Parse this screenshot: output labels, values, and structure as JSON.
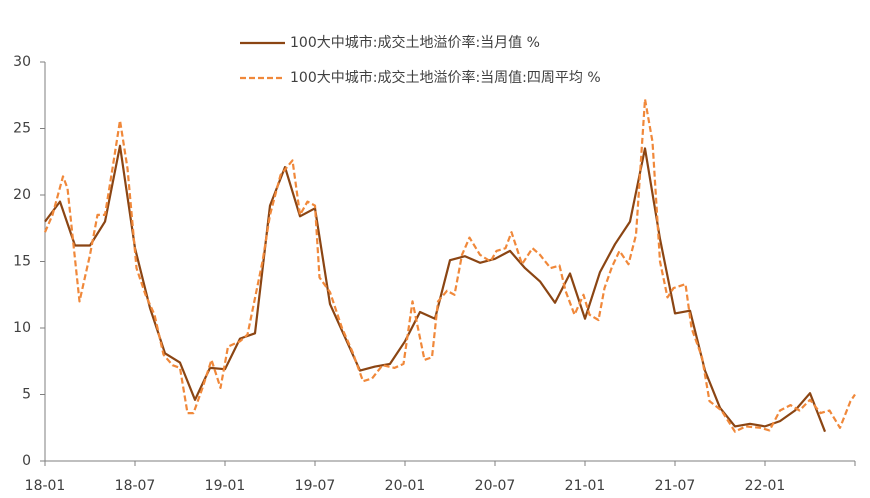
{
  "chart_data": {
    "type": "line",
    "series": [
      {
        "name": "100大中城市:成交土地溢价率:当月值 %",
        "color": "#8b4513",
        "dash": false,
        "x": [
          0,
          1,
          2,
          3,
          4,
          5,
          6,
          7,
          8,
          9,
          10,
          11,
          12,
          13,
          14,
          15,
          16,
          17,
          18,
          19,
          20,
          21,
          22,
          23,
          24,
          25,
          26,
          27,
          28,
          29,
          30,
          31,
          32,
          33,
          34,
          35,
          36,
          37,
          38,
          39,
          40,
          41,
          42,
          43,
          44,
          45,
          46,
          47,
          48,
          49,
          50,
          51,
          52
        ],
        "values": [
          18.0,
          19.5,
          16.2,
          16.2,
          18.0,
          23.7,
          16.0,
          11.5,
          8.1,
          7.4,
          4.6,
          7.0,
          6.9,
          9.2,
          9.6,
          19.2,
          22.1,
          18.4,
          19.0,
          11.8,
          9.3,
          6.8,
          7.1,
          7.3,
          9.0,
          11.2,
          10.7,
          15.1,
          15.4,
          14.9,
          15.2,
          15.8,
          14.5,
          13.5,
          11.9,
          14.1,
          10.7,
          14.2,
          16.3,
          18.0,
          23.5,
          16.7,
          11.1,
          11.3,
          6.8,
          4.0,
          2.6,
          2.8,
          2.6,
          3.0,
          3.8,
          5.1,
          2.2
        ]
      },
      {
        "name": "100大中城市:成交土地溢价率:当周值:四周平均 %",
        "color": "#f0883a",
        "dash": true,
        "x": [
          0,
          0.5,
          1.2,
          1.5,
          2.3,
          3,
          3.5,
          4,
          4.5,
          5,
          5.5,
          6.1,
          6.7,
          7.3,
          7.9,
          8.5,
          9,
          9.5,
          9.9,
          10.5,
          11.1,
          11.7,
          12.2,
          13,
          13.5,
          14.5,
          15,
          15.7,
          16.5,
          17,
          17.5,
          18,
          18.3,
          19,
          19.8,
          20.5,
          21.2,
          21.8,
          22.5,
          23.3,
          23.9,
          24.5,
          25.3,
          25.8,
          26.2,
          26.8,
          27.3,
          27.8,
          28.3,
          29,
          29.7,
          30.1,
          30.7,
          31.1,
          31.8,
          32.5,
          33,
          33.7,
          34.3,
          34.7,
          35.3,
          35.9,
          36.3,
          36.9,
          37.3,
          37.8,
          38.3,
          38.9,
          39.4,
          40,
          40.5,
          41,
          41.5,
          41.9,
          42.7,
          43.1,
          43.8,
          44.3,
          45.1,
          46,
          46.7,
          47.7,
          48.3,
          49,
          49.7,
          50.3,
          51,
          51.7,
          52.3,
          53,
          53.7,
          54
        ],
        "values": [
          17.2,
          18.5,
          21.4,
          20.5,
          12.0,
          15.5,
          18.5,
          18.5,
          22.0,
          25.6,
          22.0,
          14.5,
          12.5,
          11.0,
          8.0,
          7.2,
          7.0,
          3.6,
          3.6,
          5.5,
          7.6,
          5.5,
          8.6,
          9.0,
          9.5,
          15.0,
          18.5,
          21.5,
          22.6,
          18.5,
          19.5,
          19.2,
          13.8,
          12.7,
          10.0,
          8.2,
          6.0,
          6.2,
          7.2,
          7.0,
          7.3,
          12.0,
          7.6,
          7.8,
          12.0,
          12.8,
          12.5,
          15.5,
          16.8,
          15.5,
          15.0,
          15.8,
          16.0,
          17.2,
          14.8,
          16.0,
          15.5,
          14.5,
          14.7,
          12.8,
          11.0,
          12.5,
          11.0,
          10.6,
          13.0,
          14.6,
          15.8,
          14.8,
          17.0,
          27.2,
          24.0,
          15.0,
          12.3,
          13.0,
          13.3,
          10.0,
          7.8,
          4.5,
          3.8,
          2.2,
          2.6,
          2.5,
          2.3,
          3.8,
          4.2,
          3.8,
          4.6,
          3.6,
          3.8,
          2.5,
          4.5,
          5.0
        ]
      }
    ],
    "xlim": [
      0,
      54
    ],
    "xticks": [
      {
        "value": 0,
        "label": "18-01"
      },
      {
        "value": 6,
        "label": "18-07"
      },
      {
        "value": 12,
        "label": "19-01"
      },
      {
        "value": 18,
        "label": "19-07"
      },
      {
        "value": 24,
        "label": "20-01"
      },
      {
        "value": 30,
        "label": "20-07"
      },
      {
        "value": 36,
        "label": "21-01"
      },
      {
        "value": 42,
        "label": "21-07"
      },
      {
        "value": 48,
        "label": "22-01"
      }
    ],
    "ylim": [
      0,
      30
    ],
    "yticks": [
      0,
      5,
      10,
      15,
      20,
      25,
      30
    ],
    "grid": false
  }
}
